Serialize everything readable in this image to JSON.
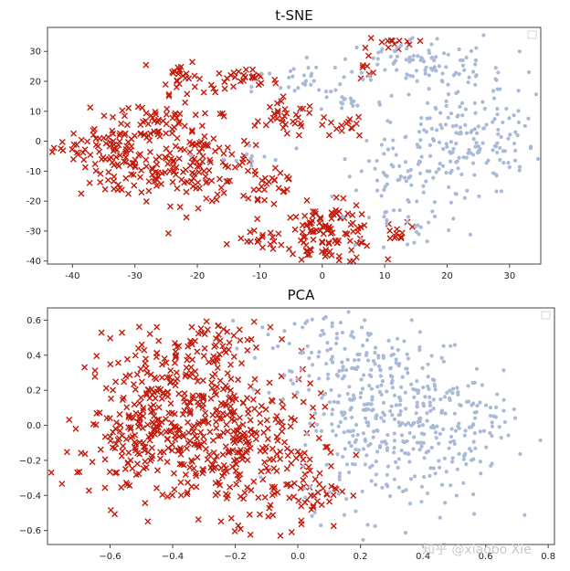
{
  "watermark": "知乎 @xiaobo Xie",
  "colors": {
    "class_a": "#c41a0b",
    "class_b": "#a9b9d8",
    "axes": "#444444"
  },
  "chart_data": [
    {
      "type": "scatter",
      "title": "t-SNE",
      "xlabel": "",
      "ylabel": "",
      "xlim": [
        -44,
        35
      ],
      "ylim": [
        -41,
        38
      ],
      "xticks": [
        -40,
        -30,
        -20,
        -10,
        0,
        10,
        20,
        30
      ],
      "yticks": [
        -40,
        -30,
        -20,
        -10,
        0,
        10,
        20,
        30
      ],
      "grid": false,
      "legend": "top-right (empty)",
      "series": [
        {
          "marker": "x",
          "color": "#c41a0b",
          "clusters": [
            {
              "cx": -35,
              "cy": -2,
              "sx": 4,
              "sy": 3,
              "n": 45
            },
            {
              "cx": -31,
              "cy": -10,
              "sx": 4,
              "sy": 5,
              "n": 70
            },
            {
              "cx": -28,
              "cy": 7,
              "sx": 4,
              "sy": 4,
              "n": 50
            },
            {
              "cx": -23,
              "cy": 22,
              "sx": 1.5,
              "sy": 3,
              "n": 25
            },
            {
              "cx": -20,
              "cy": -7,
              "sx": 4.5,
              "sy": 7,
              "n": 120
            },
            {
              "cx": -13,
              "cy": 20,
              "sx": 3,
              "sy": 2,
              "n": 30
            },
            {
              "cx": -9,
              "cy": -13,
              "sx": 3,
              "sy": 6,
              "n": 30
            },
            {
              "cx": -6,
              "cy": 7,
              "sx": 2.5,
              "sy": 3,
              "n": 30
            },
            {
              "cx": 3,
              "cy": 5,
              "sx": 2,
              "sy": 2,
              "n": 15
            },
            {
              "cx": -10,
              "cy": -33,
              "sx": 2,
              "sy": 1.5,
              "n": 15
            },
            {
              "cx": 1,
              "cy": -31,
              "sx": 4,
              "sy": 5,
              "n": 120
            },
            {
              "cx": 7,
              "cy": 26,
              "sx": 0.7,
              "sy": 3,
              "n": 8
            },
            {
              "cx": 11,
              "cy": 33,
              "sx": 2,
              "sy": 1,
              "n": 12
            },
            {
              "cx": 12,
              "cy": -31,
              "sx": 1.2,
              "sy": 1.2,
              "n": 10
            }
          ]
        },
        {
          "marker": "o",
          "color": "#a9b9d8",
          "clusters": [
            {
              "cx": -3,
              "cy": 18,
              "sx": 4,
              "sy": 4,
              "n": 30
            },
            {
              "cx": 4,
              "cy": 13,
              "sx": 3,
              "sy": 2,
              "n": 15
            },
            {
              "cx": 15,
              "cy": 27,
              "sx": 6,
              "sy": 4,
              "n": 70
            },
            {
              "cx": 22,
              "cy": 12,
              "sx": 6,
              "sy": 10,
              "n": 100
            },
            {
              "cx": 23,
              "cy": -2,
              "sx": 6,
              "sy": 6,
              "n": 90
            },
            {
              "cx": 15,
              "cy": -12,
              "sx": 6,
              "sy": 5,
              "n": 60
            },
            {
              "cx": 13,
              "cy": -27,
              "sx": 5,
              "sy": 4,
              "n": 30
            },
            {
              "cx": -12,
              "cy": -6,
              "sx": 3,
              "sy": 3,
              "n": 12
            }
          ]
        }
      ]
    },
    {
      "type": "scatter",
      "title": "PCA",
      "xlabel": "",
      "ylabel": "",
      "xlim": [
        -0.8,
        0.82
      ],
      "ylim": [
        -0.68,
        0.67
      ],
      "xticks": [
        -0.6,
        -0.4,
        -0.2,
        0.0,
        0.2,
        0.4,
        0.6,
        0.8
      ],
      "xtick_labels": [
        "−0.6",
        "−0.4",
        "−0.2",
        "0.0",
        "0.2",
        "0.4",
        "0.6",
        "0.8"
      ],
      "yticks": [
        -0.6,
        -0.4,
        -0.2,
        0.0,
        0.2,
        0.4,
        0.6
      ],
      "ytick_labels": [
        "−0.6",
        "−0.4",
        "−0.2",
        "0.0",
        "0.2",
        "0.4",
        "0.6"
      ],
      "grid": false,
      "legend": "top-right (empty)",
      "series": [
        {
          "marker": "x",
          "color": "#c41a0b",
          "clusters": [
            {
              "cx": -0.42,
              "cy": 0.08,
              "sx": 0.13,
              "sy": 0.2,
              "n": 230
            },
            {
              "cx": -0.2,
              "cy": -0.08,
              "sx": 0.13,
              "sy": 0.22,
              "n": 260
            },
            {
              "cx": -0.55,
              "cy": -0.15,
              "sx": 0.08,
              "sy": 0.12,
              "n": 70
            },
            {
              "cx": -0.3,
              "cy": 0.45,
              "sx": 0.08,
              "sy": 0.07,
              "n": 50
            },
            {
              "cx": 0.02,
              "cy": -0.35,
              "sx": 0.07,
              "sy": 0.12,
              "n": 60
            }
          ]
        },
        {
          "marker": "o",
          "color": "#a9b9d8",
          "clusters": [
            {
              "cx": 0.3,
              "cy": 0.05,
              "sx": 0.15,
              "sy": 0.26,
              "n": 380
            },
            {
              "cx": 0.1,
              "cy": 0.4,
              "sx": 0.12,
              "sy": 0.12,
              "n": 80
            },
            {
              "cx": 0.55,
              "cy": 0.0,
              "sx": 0.08,
              "sy": 0.2,
              "n": 60
            }
          ]
        }
      ]
    }
  ]
}
